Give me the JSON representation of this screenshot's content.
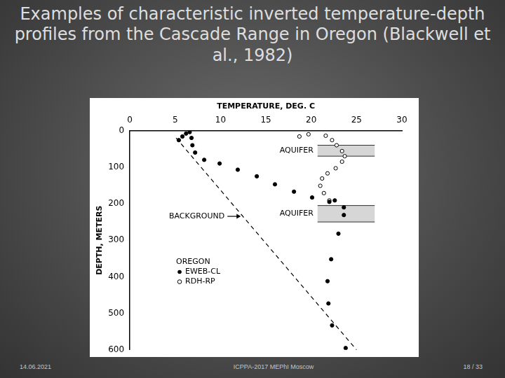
{
  "slide": {
    "title": "Examples of characteristic inverted temperature-depth profiles from the Cascade Range in Oregon (Blackwell et al., 1982)",
    "footer": {
      "date": "14.06.2021",
      "center": "ICPPA-2017 MEPhI Moscow",
      "page": "18 / 33"
    }
  },
  "chart_data": {
    "type": "scatter",
    "x_label": "TEMPERATURE, DEG. C",
    "y_label": "DEPTH, METERS",
    "xlim": [
      0,
      30
    ],
    "xticks": [
      0,
      5,
      10,
      15,
      20,
      25,
      30
    ],
    "ylim": [
      600,
      0
    ],
    "yticks": [
      0,
      100,
      200,
      300,
      400,
      500,
      600
    ],
    "grid": false,
    "legend": "lower left",
    "legend_title": "OREGON",
    "series": [
      {
        "name": "EWEB-CL",
        "color": "#000000",
        "marker": "filled_circle",
        "line_style": "none",
        "x": [
          5.4,
          5.8,
          6.2,
          6.6,
          6.8,
          6.9,
          7.2,
          8.2,
          9.9,
          11.9,
          14,
          16,
          18.1,
          20.1,
          22,
          22.6,
          23.6,
          23.6,
          23,
          22.2,
          21.8,
          21.9,
          22.3,
          23.8
        ],
        "values": [
          26,
          16,
          8,
          4,
          20,
          40,
          60,
          80,
          90,
          107,
          125,
          147,
          167,
          183,
          195,
          191,
          210,
          231,
          282,
          352,
          412,
          473,
          533,
          595
        ]
      },
      {
        "name": "RDH-RP",
        "color": "#000000",
        "marker": "open_circle",
        "line_style": "none",
        "x": [
          18.7,
          19.7,
          21.6,
          22.3,
          22.8,
          23.4,
          23.7,
          23.4,
          22.7,
          21.8,
          21.2,
          21,
          21.4,
          22
        ],
        "values": [
          16,
          10,
          14,
          26,
          40,
          56,
          70,
          85,
          103,
          117,
          131,
          151,
          171,
          191
        ]
      },
      {
        "name": "BACKGROUND",
        "color": "#000000",
        "marker": "none",
        "line_style": "dashed",
        "x": [
          5.1,
          25
        ],
        "values": [
          20,
          600
        ]
      }
    ],
    "annotations": [
      {
        "text": "AQUIFER",
        "depth_range": [
          40,
          70
        ]
      },
      {
        "text": "AQUIFER",
        "depth_range": [
          205,
          250
        ]
      }
    ]
  }
}
